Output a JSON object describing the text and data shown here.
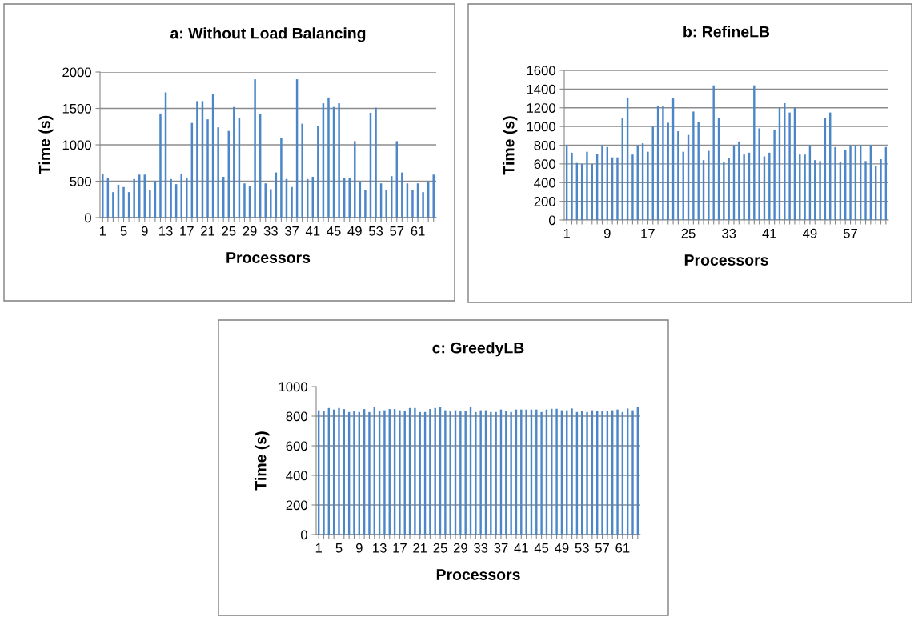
{
  "chart_data": [
    {
      "type": "bar",
      "title": "a: Without Load Balancing",
      "xlabel": "Processors",
      "ylabel": "Time (s)",
      "color": "#4a86c8",
      "grid": "y",
      "ylim": [
        0,
        2000
      ],
      "yticks": [
        0,
        500,
        1000,
        1500,
        2000
      ],
      "categories": [
        "1",
        null,
        null,
        null,
        "5",
        null,
        null,
        null,
        "9",
        null,
        null,
        null,
        "13",
        null,
        null,
        null,
        "17",
        null,
        null,
        null,
        "21",
        null,
        null,
        null,
        "25",
        null,
        null,
        null,
        "29",
        null,
        null,
        null,
        "33",
        null,
        null,
        null,
        "37",
        null,
        null,
        null,
        "41",
        null,
        null,
        null,
        "45",
        null,
        null,
        null,
        "49",
        null,
        null,
        null,
        "53",
        null,
        null,
        null,
        "57",
        null,
        null,
        null,
        "61",
        null,
        null,
        null
      ],
      "values": [
        600,
        550,
        350,
        450,
        420,
        350,
        530,
        590,
        590,
        380,
        500,
        1430,
        1720,
        530,
        460,
        600,
        550,
        1300,
        1600,
        1600,
        1350,
        1700,
        1240,
        560,
        1190,
        1520,
        1370,
        470,
        430,
        1900,
        1420,
        470,
        390,
        620,
        1090,
        530,
        420,
        1900,
        1290,
        530,
        560,
        1260,
        1570,
        1650,
        1520,
        1570,
        540,
        540,
        1050,
        500,
        380,
        1440,
        1510,
        470,
        380,
        570,
        1050,
        620,
        470,
        380,
        470,
        350,
        500,
        590
      ]
    },
    {
      "type": "bar",
      "title": "b: RefineLB",
      "xlabel": "Processors",
      "ylabel": "Time (s)",
      "color": "#4a86c8",
      "grid": "y",
      "ylim": [
        0,
        1600
      ],
      "yticks": [
        0,
        200,
        400,
        600,
        800,
        1000,
        1200,
        1400,
        1600
      ],
      "categories": [
        "1",
        null,
        null,
        null,
        null,
        null,
        null,
        null,
        "9",
        null,
        null,
        null,
        null,
        null,
        null,
        null,
        "17",
        null,
        null,
        null,
        null,
        null,
        null,
        null,
        "25",
        null,
        null,
        null,
        null,
        null,
        null,
        null,
        "33",
        null,
        null,
        null,
        null,
        null,
        null,
        null,
        "41",
        null,
        null,
        null,
        null,
        null,
        null,
        null,
        "49",
        null,
        null,
        null,
        null,
        null,
        null,
        null,
        "57",
        null,
        null,
        null,
        null,
        null,
        null,
        null
      ],
      "values": [
        800,
        720,
        610,
        600,
        730,
        600,
        710,
        800,
        780,
        670,
        670,
        1090,
        1310,
        700,
        800,
        820,
        730,
        1000,
        1220,
        1220,
        1040,
        1300,
        950,
        730,
        910,
        1160,
        1050,
        640,
        740,
        1440,
        1090,
        620,
        660,
        800,
        840,
        700,
        720,
        1440,
        980,
        680,
        720,
        960,
        1200,
        1250,
        1150,
        1200,
        700,
        700,
        800,
        640,
        630,
        1090,
        1150,
        780,
        620,
        750,
        800,
        800,
        800,
        630,
        800,
        580,
        650,
        780
      ]
    },
    {
      "type": "bar",
      "title": "c: GreedyLB",
      "xlabel": "Processors",
      "ylabel": "Time (s)",
      "color": "#4a86c8",
      "grid": "y",
      "ylim": [
        0,
        1000
      ],
      "yticks": [
        0,
        200,
        400,
        600,
        800,
        1000
      ],
      "categories": [
        "1",
        null,
        null,
        null,
        "5",
        null,
        null,
        null,
        "9",
        null,
        null,
        null,
        "13",
        null,
        null,
        null,
        "17",
        null,
        null,
        null,
        "21",
        null,
        null,
        null,
        "25",
        null,
        null,
        null,
        "29",
        null,
        null,
        null,
        "33",
        null,
        null,
        null,
        "37",
        null,
        null,
        null,
        "41",
        null,
        null,
        null,
        "45",
        null,
        null,
        null,
        "49",
        null,
        null,
        null,
        "53",
        null,
        null,
        null,
        "57",
        null,
        null,
        null,
        "61",
        null,
        null,
        null
      ],
      "values": [
        840,
        835,
        855,
        845,
        855,
        848,
        828,
        835,
        828,
        848,
        828,
        862,
        835,
        840,
        848,
        848,
        840,
        835,
        855,
        855,
        828,
        828,
        848,
        855,
        862,
        840,
        835,
        840,
        835,
        835,
        862,
        828,
        840,
        840,
        828,
        828,
        845,
        835,
        828,
        845,
        845,
        845,
        845,
        845,
        828,
        845,
        850,
        850,
        840,
        840,
        852,
        828,
        835,
        828,
        840,
        835,
        835,
        835,
        840,
        845,
        828,
        852,
        840,
        862
      ]
    }
  ]
}
